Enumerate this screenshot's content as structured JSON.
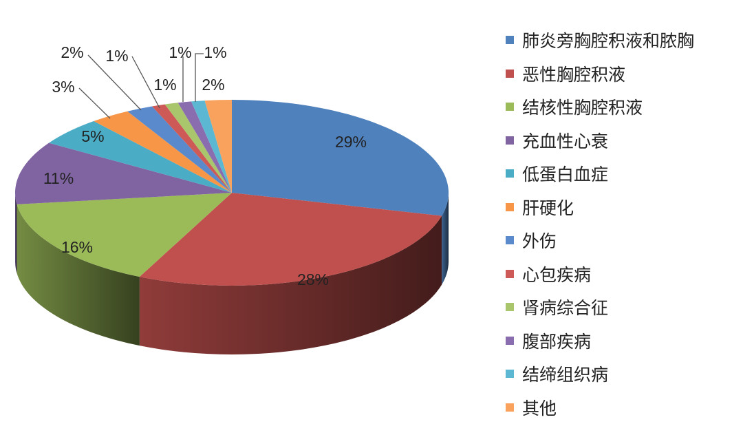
{
  "chart_data": {
    "type": "pie",
    "style": "3d",
    "legend_position": "right",
    "categories": [
      "肺炎旁胸腔积液和脓胸",
      "恶性胸腔积液",
      "结核性胸腔积液",
      "充血性心衰",
      "低蛋白血症",
      "肝硬化",
      "外伤",
      "心包疾病",
      "肾病综合征",
      "腹部疾病",
      "结缔组织病",
      "其他"
    ],
    "values": [
      29,
      28,
      16,
      11,
      5,
      3,
      2,
      1,
      1,
      1,
      1,
      2
    ],
    "data_labels": [
      "29%",
      "28%",
      "16%",
      "11%",
      "5%",
      "3%",
      "2%",
      "1%",
      "1%",
      "1%",
      "1%",
      "2%"
    ],
    "colors": [
      "#4F81BD",
      "#C0504D",
      "#9BBB59",
      "#8064A2",
      "#4BACC6",
      "#F79646",
      "#5A8ACB",
      "#CD5A57",
      "#A9C66C",
      "#8A6DAE",
      "#5CB8D2",
      "#F8A25E"
    ]
  }
}
